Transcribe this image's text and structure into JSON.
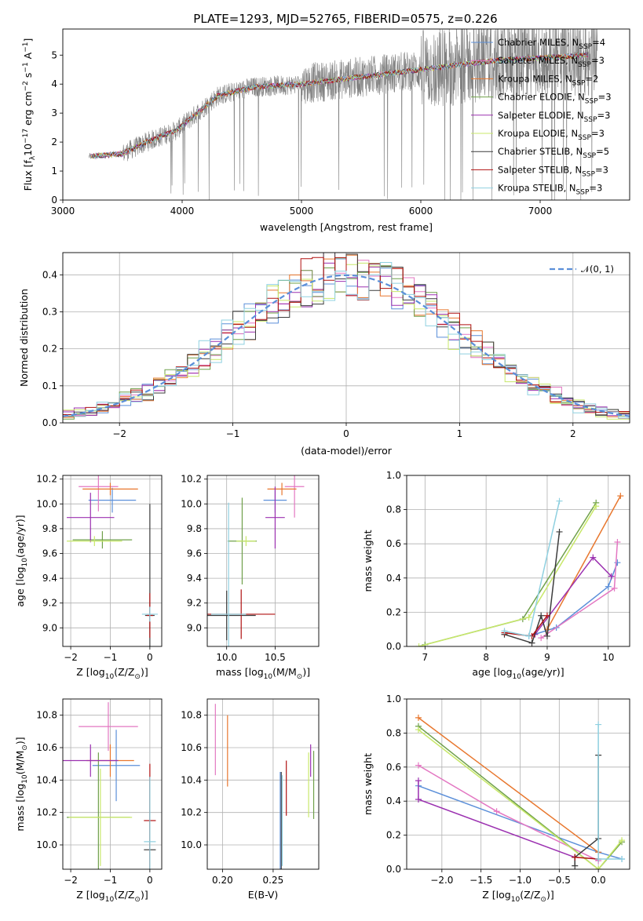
{
  "title": "PLATE=1293, MJD=52765, FIBERID=0575, z=0.226",
  "colors": {
    "grid": "#b0b0b0",
    "data": "#808080",
    "gaussian": "#5b8fd9"
  },
  "models": [
    {
      "label": "Chabrier MILES, N",
      "sub": "SSP",
      "suf": "=4",
      "color": "#5b8fd9"
    },
    {
      "label": "Salpeter MILES, N",
      "sub": "SSP",
      "suf": "=3",
      "color": "#e377c2"
    },
    {
      "label": "Kroupa MILES, N",
      "sub": "SSP",
      "suf": "=2",
      "color": "#e8772e"
    },
    {
      "label": "Chabrier ELODIE, N",
      "sub": "SSP",
      "suf": "=3",
      "color": "#6fa04a"
    },
    {
      "label": "Salpeter ELODIE, N",
      "sub": "SSP",
      "suf": "=3",
      "color": "#9b30b0"
    },
    {
      "label": "Kroupa ELODIE, N",
      "sub": "SSP",
      "suf": "=3",
      "color": "#c8e86a"
    },
    {
      "label": "Chabrier STELIB, N",
      "sub": "SSP",
      "suf": "=5",
      "color": "#3c3c3c"
    },
    {
      "label": "Salpeter STELIB, N",
      "sub": "SSP",
      "suf": "=3",
      "color": "#b01010"
    },
    {
      "label": "Kroupa STELIB, N",
      "sub": "SSP",
      "suf": "=3",
      "color": "#8fd0e0"
    }
  ],
  "chart_data": [
    {
      "type": "line",
      "name": "spectrum",
      "xlabel": "wavelength [Angstrom, rest frame]",
      "ylabel": "Flux [f_λ 10^-17 erg cm^-2 s^-1 A^-1]",
      "ylabel_parts": {
        "a": "Flux [f",
        "b": "λ",
        "c": "10",
        "d": "−17",
        "e": " erg cm",
        "f": "−2",
        "g": " s",
        "h": "−1",
        "i": " A",
        "j": "−1",
        "k": "]"
      },
      "xlim": [
        3000,
        7750
      ],
      "ylim": [
        0,
        5.9
      ],
      "xticks": [
        3000,
        4000,
        5000,
        6000,
        7000
      ],
      "xtick_labels": [
        "3000",
        "4000",
        "5000",
        "6000",
        "7000"
      ],
      "yticks": [
        0,
        1,
        2,
        3,
        4,
        5
      ],
      "ytick_labels": [
        "0",
        "1",
        "2",
        "3",
        "4",
        "5"
      ],
      "continuum": {
        "x": [
          3220,
          3500,
          3700,
          3950,
          4300,
          4600,
          5000,
          5400,
          5800,
          6200,
          6600,
          7000,
          7400
        ],
        "y": [
          1.5,
          1.6,
          2.0,
          2.4,
          3.6,
          3.9,
          4.0,
          4.2,
          4.4,
          4.6,
          4.8,
          4.9,
          5.0
        ]
      },
      "legend": "top-right"
    },
    {
      "type": "histogram",
      "name": "residuals",
      "xlabel": "(data-model)/error",
      "ylabel": "Normed distribution",
      "xlim": [
        -2.5,
        2.5
      ],
      "ylim": [
        0,
        0.46
      ],
      "xticks": [
        -2,
        -1,
        0,
        1,
        2
      ],
      "xtick_labels": [
        "−2",
        "−1",
        "0",
        "1",
        "2"
      ],
      "yticks": [
        0,
        0.1,
        0.2,
        0.3,
        0.4
      ],
      "ytick_labels": [
        "0.0",
        "0.1",
        "0.2",
        "0.3",
        "0.4"
      ],
      "bin_width": 0.1,
      "gaussian_label": "𝒩(0, 1)",
      "legend": "top-right"
    },
    {
      "type": "errorbar",
      "name": "age-vs-Z",
      "xlabel": "Z [log10(Z/Z☉)]",
      "xlabel_parts": {
        "a": "Z [log",
        "b": "10",
        "c": "(Z/Z",
        "d": "⊙",
        "e": ")]"
      },
      "ylabel": "age [log10(age/yr)]",
      "ylabel_parts": {
        "a": "age  [log",
        "b": "10",
        "c": "(age/yr)]"
      },
      "xlim": [
        -2.2,
        0.3
      ],
      "ylim": [
        8.85,
        10.23
      ],
      "xticks": [
        -2,
        -1,
        0
      ],
      "xtick_labels": [
        "−2",
        "−1",
        "0"
      ],
      "yticks": [
        9.0,
        9.2,
        9.4,
        9.6,
        9.8,
        10.0,
        10.2
      ],
      "ytick_labels": [
        "9.0",
        "9.2",
        "9.4",
        "9.6",
        "9.8",
        "10.0",
        "10.2"
      ],
      "points": [
        {
          "c": 0,
          "x": -0.95,
          "xe": 0.6,
          "y": 10.03,
          "ye": 0.1
        },
        {
          "c": 1,
          "x": -1.3,
          "xe": 0.5,
          "y": 10.14,
          "ye": 0.2
        },
        {
          "c": 2,
          "x": -1.0,
          "xe": 0.7,
          "y": 10.12,
          "ye": 0.05
        },
        {
          "c": 3,
          "x": -1.2,
          "xe": 0.75,
          "y": 9.71,
          "ye": 0.07
        },
        {
          "c": 4,
          "x": -1.5,
          "xe": 0.6,
          "y": 9.89,
          "ye": 0.2
        },
        {
          "c": 5,
          "x": -1.4,
          "xe": 0.7,
          "y": 9.7,
          "ye": 0.04
        },
        {
          "c": 6,
          "x": 0.0,
          "xe": 0.12,
          "y": 9.1,
          "ye": 0.9
        },
        {
          "c": 7,
          "x": 0.0,
          "xe": 0.08,
          "y": 9.1,
          "ye": 0.18
        },
        {
          "c": 8,
          "x": 0.0,
          "xe": 0.2,
          "y": 9.11,
          "ye": 0.06
        }
      ]
    },
    {
      "type": "errorbar",
      "name": "age-vs-mass",
      "xlabel": "mass [log10(M/M☉)]",
      "xlabel_parts": {
        "a": "mass [log",
        "b": "10",
        "c": "(M/M",
        "d": "⊙",
        "e": ")]"
      },
      "ylabel": "",
      "xlim": [
        9.8,
        10.95
      ],
      "ylim": [
        8.85,
        10.23
      ],
      "xticks": [
        10.0,
        10.5
      ],
      "xtick_labels": [
        "10.0",
        "10.5"
      ],
      "yticks": [
        9.0,
        9.2,
        9.4,
        9.6,
        9.8,
        10.0,
        10.2
      ],
      "ytick_labels": [
        "9.0",
        "9.2",
        "9.4",
        "9.6",
        "9.8",
        "10.0",
        "10.2"
      ],
      "points": [
        {
          "c": 0,
          "x": 10.5,
          "xe": 0.12,
          "y": 10.03,
          "ye": 0.1
        },
        {
          "c": 1,
          "x": 10.7,
          "xe": 0.1,
          "y": 10.14,
          "ye": 0.25
        },
        {
          "c": 2,
          "x": 10.57,
          "xe": 0.15,
          "y": 10.12,
          "ye": 0.05
        },
        {
          "c": 3,
          "x": 10.16,
          "xe": 0.15,
          "y": 9.7,
          "ye": 0.35
        },
        {
          "c": 4,
          "x": 10.5,
          "xe": 0.1,
          "y": 9.89,
          "ye": 0.25
        },
        {
          "c": 5,
          "x": 10.2,
          "xe": 0.1,
          "y": 9.7,
          "ye": 0.04
        },
        {
          "c": 6,
          "x": 10.0,
          "xe": 0.3,
          "y": 9.1,
          "ye": 0.2
        },
        {
          "c": 7,
          "x": 10.15,
          "xe": 0.35,
          "y": 9.11,
          "ye": 0.2
        },
        {
          "c": 8,
          "x": 10.02,
          "xe": 0.18,
          "y": 9.11,
          "ye": 0.9
        }
      ]
    },
    {
      "type": "line",
      "name": "mass-weight-vs-age",
      "xlabel": "age [log10(age/yr)]",
      "xlabel_parts": {
        "a": "age  [log",
        "b": "10",
        "c": "(age/yr)]"
      },
      "ylabel": "mass weight",
      "xlim": [
        6.7,
        10.35
      ],
      "ylim": [
        0,
        1
      ],
      "xticks": [
        7,
        8,
        9,
        10
      ],
      "xtick_labels": [
        "7",
        "8",
        "9",
        "10"
      ],
      "yticks": [
        0,
        0.2,
        0.4,
        0.6,
        0.8,
        1.0
      ],
      "ytick_labels": [
        "0.0",
        "0.2",
        "0.4",
        "0.6",
        "0.8",
        "1.0"
      ],
      "series": [
        {
          "c": 0,
          "x": [
            8.7,
            9.15,
            10.0,
            10.15
          ],
          "y": [
            0.06,
            0.11,
            0.35,
            0.49
          ]
        },
        {
          "c": 1,
          "x": [
            8.9,
            10.1,
            10.15
          ],
          "y": [
            0.05,
            0.34,
            0.61
          ]
        },
        {
          "c": 2,
          "x": [
            9.0,
            10.2
          ],
          "y": [
            0.1,
            0.88
          ]
        },
        {
          "c": 3,
          "x": [
            7.0,
            8.6,
            9.8
          ],
          "y": [
            0.01,
            0.16,
            0.84
          ]
        },
        {
          "c": 4,
          "x": [
            8.8,
            9.75,
            10.05
          ],
          "y": [
            0.07,
            0.52,
            0.41
          ]
        },
        {
          "c": 5,
          "x": [
            6.9,
            8.7,
            9.8
          ],
          "y": [
            0.0,
            0.17,
            0.82
          ]
        },
        {
          "c": 6,
          "x": [
            8.3,
            8.75,
            8.9,
            9.0,
            9.2
          ],
          "y": [
            0.07,
            0.02,
            0.18,
            0.06,
            0.67
          ]
        },
        {
          "c": 7,
          "x": [
            8.3,
            8.75,
            9.0
          ],
          "y": [
            0.08,
            0.06,
            0.18
          ]
        },
        {
          "c": 8,
          "x": [
            8.3,
            8.7,
            9.2
          ],
          "y": [
            0.09,
            0.06,
            0.85
          ]
        }
      ]
    },
    {
      "type": "errorbar",
      "name": "mass-vs-Z",
      "xlabel": "Z [log10(Z/Z☉)]",
      "xlabel_parts": {
        "a": "Z [log",
        "b": "10",
        "c": "(Z/Z",
        "d": "⊙",
        "e": ")]"
      },
      "ylabel": "mass [log10(M/M☉)]",
      "ylabel_parts": {
        "a": "mass [log",
        "b": "10",
        "c": "(M/M",
        "d": "⊙",
        "e": ")]"
      },
      "xlim": [
        -2.2,
        0.3
      ],
      "ylim": [
        9.85,
        10.9
      ],
      "xticks": [
        -2,
        -1,
        0
      ],
      "xtick_labels": [
        "−2",
        "−1",
        "0"
      ],
      "yticks": [
        10.0,
        10.2,
        10.4,
        10.6,
        10.8
      ],
      "ytick_labels": [
        "10.0",
        "10.2",
        "10.4",
        "10.6",
        "10.8"
      ],
      "points": [
        {
          "c": 0,
          "x": -0.85,
          "xe": 0.6,
          "y": 10.49,
          "ye": 0.22
        },
        {
          "c": 1,
          "x": -1.05,
          "xe": 0.75,
          "y": 10.73,
          "ye": 0.15
        },
        {
          "c": 2,
          "x": -1.0,
          "xe": 0.6,
          "y": 10.52,
          "ye": 0.1
        },
        {
          "c": 3,
          "x": -1.3,
          "xe": 0.8,
          "y": 10.17,
          "ye": 0.4
        },
        {
          "c": 4,
          "x": -1.5,
          "xe": 0.7,
          "y": 10.52,
          "ye": 0.1
        },
        {
          "c": 5,
          "x": -1.25,
          "xe": 0.8,
          "y": 10.17,
          "ye": 0.3
        },
        {
          "c": 6,
          "x": 0.0,
          "xe": 0.15,
          "y": 9.97,
          "ye": 0.45
        },
        {
          "c": 7,
          "x": 0.0,
          "xe": 0.15,
          "y": 10.15,
          "ye": 0.35
        },
        {
          "c": 8,
          "x": 0.0,
          "xe": 0.15,
          "y": 10.02,
          "ye": 0.4
        }
      ]
    },
    {
      "type": "errorbar",
      "name": "mass-vs-EBV",
      "xlabel": "E(B-V)",
      "ylabel": "",
      "xlim": [
        0.185,
        0.295
      ],
      "ylim": [
        9.85,
        10.9
      ],
      "xticks": [
        0.2,
        0.25
      ],
      "xtick_labels": [
        "0.20",
        "0.25"
      ],
      "yticks": [
        10.0,
        10.2,
        10.4,
        10.6,
        10.8
      ],
      "ytick_labels": [
        "10.0",
        "10.2",
        "10.4",
        "10.6",
        "10.8"
      ],
      "points": [
        {
          "c": 0,
          "x": 0.257,
          "xe": 0,
          "y": 10.15,
          "ye": 0.3
        },
        {
          "c": 1,
          "x": 0.193,
          "xe": 0,
          "y": 10.65,
          "ye": 0.22
        },
        {
          "c": 2,
          "x": 0.205,
          "xe": 0,
          "y": 10.58,
          "ye": 0.22
        },
        {
          "c": 3,
          "x": 0.29,
          "xe": 0,
          "y": 10.37,
          "ye": 0.21
        },
        {
          "c": 4,
          "x": 0.287,
          "xe": 0,
          "y": 10.52,
          "ye": 0.1
        },
        {
          "c": 5,
          "x": 0.285,
          "xe": 0,
          "y": 10.37,
          "ye": 0.2
        },
        {
          "c": 6,
          "x": 0.258,
          "xe": 0,
          "y": 10.15,
          "ye": 0.3
        },
        {
          "c": 7,
          "x": 0.263,
          "xe": 0,
          "y": 10.35,
          "ye": 0.17
        },
        {
          "c": 8,
          "x": 0.259,
          "xe": 0,
          "y": 10.15,
          "ye": 0.28
        }
      ]
    },
    {
      "type": "line",
      "name": "mass-weight-vs-Z",
      "xlabel": "Z [log10(Z/Z☉)]",
      "xlabel_parts": {
        "a": "Z [log",
        "b": "10",
        "c": "(Z/Z",
        "d": "⊙",
        "e": ")]"
      },
      "ylabel": "mass weight",
      "xlim": [
        -2.45,
        0.4
      ],
      "ylim": [
        0,
        1
      ],
      "xticks": [
        -2.0,
        -1.5,
        -1.0,
        -0.5,
        0.0
      ],
      "xtick_labels": [
        "−2.0",
        "−1.5",
        "−1.0",
        "−0.5",
        "0.0"
      ],
      "yticks": [
        0,
        0.2,
        0.4,
        0.6,
        0.8,
        1.0
      ],
      "ytick_labels": [
        "0.0",
        "0.2",
        "0.4",
        "0.6",
        "0.8",
        "1.0"
      ],
      "series": [
        {
          "c": 0,
          "x": [
            -2.3,
            0.0,
            0.3
          ],
          "y": [
            0.49,
            0.1,
            0.06
          ]
        },
        {
          "c": 1,
          "x": [
            -2.3,
            -1.3,
            0.0
          ],
          "y": [
            0.61,
            0.34,
            0.05
          ]
        },
        {
          "c": 2,
          "x": [
            -2.3,
            0.0
          ],
          "y": [
            0.89,
            0.1
          ]
        },
        {
          "c": 3,
          "x": [
            -2.3,
            0.0,
            0.3
          ],
          "y": [
            0.84,
            0.0,
            0.16
          ]
        },
        {
          "c": 4,
          "x": [
            -2.3,
            -2.3,
            -0.3
          ],
          "y": [
            0.52,
            0.41,
            0.07
          ]
        },
        {
          "c": 5,
          "x": [
            -2.3,
            0.0,
            0.3
          ],
          "y": [
            0.82,
            0.0,
            0.17
          ]
        },
        {
          "c": 6,
          "x": [
            -0.3,
            -0.3,
            0.0,
            0.0
          ],
          "y": [
            0.02,
            0.07,
            0.18,
            0.67
          ]
        },
        {
          "c": 7,
          "x": [
            -0.3,
            0.0
          ],
          "y": [
            0.07,
            0.06
          ]
        },
        {
          "c": 8,
          "x": [
            0.0,
            0.0,
            0.3
          ],
          "y": [
            0.85,
            0.06,
            0.06
          ]
        }
      ]
    }
  ]
}
